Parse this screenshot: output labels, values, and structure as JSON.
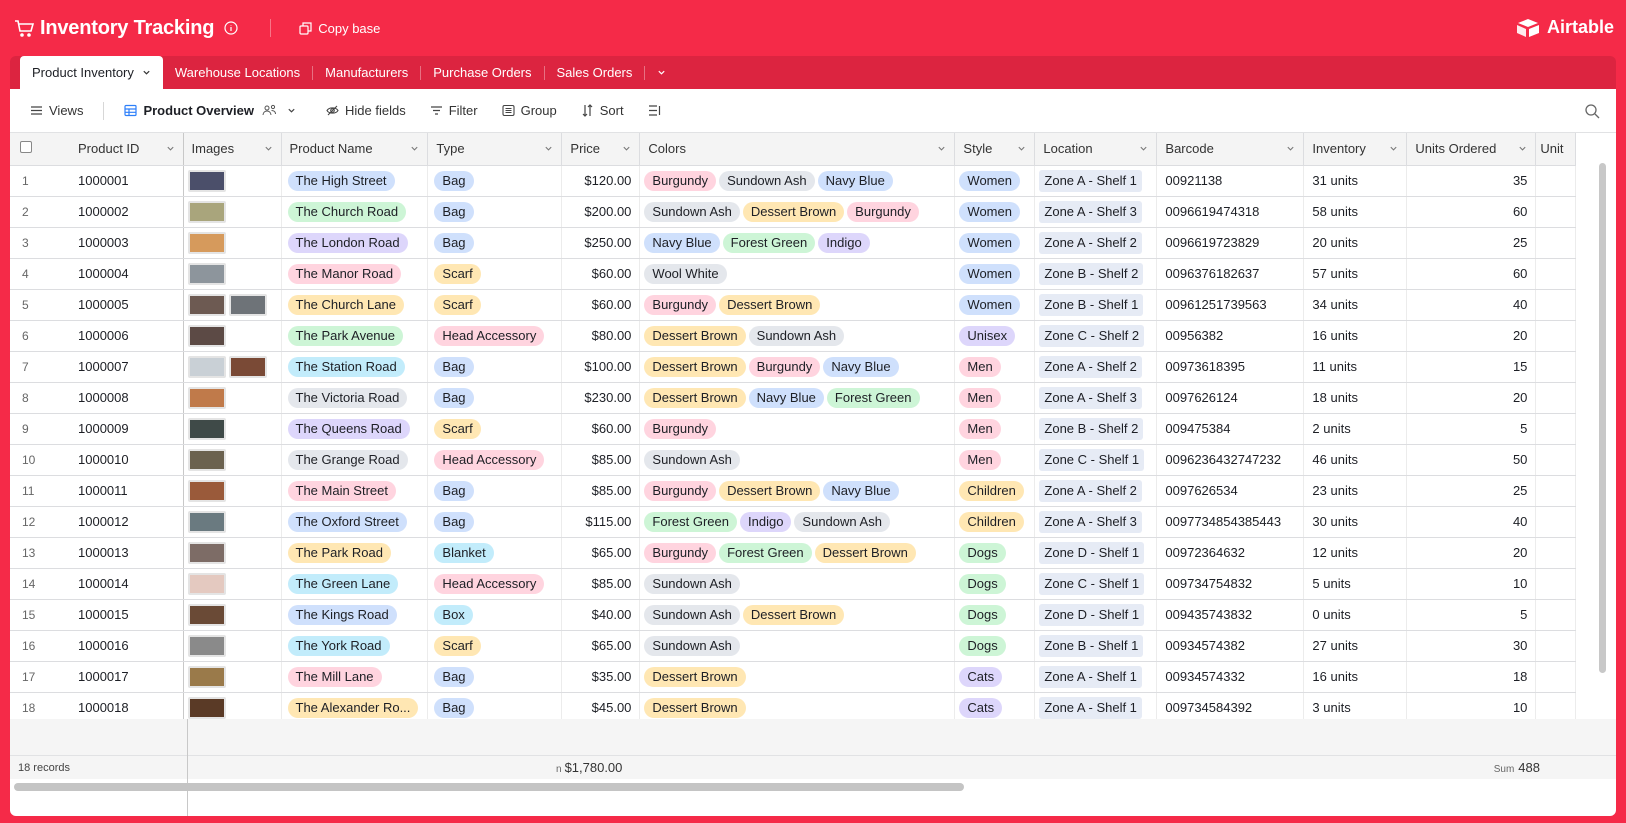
{
  "app": {
    "title": "Inventory Tracking",
    "copy_label": "Copy base",
    "brand": "Airtable",
    "accent": "#f52a48"
  },
  "tabs": [
    {
      "label": "Product Inventory",
      "active": true
    },
    {
      "label": "Warehouse Locations"
    },
    {
      "label": "Manufacturers"
    },
    {
      "label": "Purchase Orders"
    },
    {
      "label": "Sales Orders"
    }
  ],
  "viewbar": {
    "views_label": "Views",
    "view_name": "Product Overview",
    "hide_fields": "Hide fields",
    "filter": "Filter",
    "group": "Group",
    "sort": "Sort"
  },
  "columns": [
    "Product ID",
    "Images",
    "Product Name",
    "Type",
    "Price",
    "Colors",
    "Style",
    "Location",
    "Barcode",
    "Inventory",
    "Units Ordered",
    "Unit"
  ],
  "colors": {
    "blue": "#cfe0fc",
    "green": "#cdf5d6",
    "purple": "#ddd6fb",
    "pink": "#ffd4df",
    "yellow": "#ffe7b3",
    "cyan": "#c2ecfb",
    "gray": "#e4e7ec"
  },
  "rows": [
    {
      "n": "1",
      "id": "1000001",
      "imgs": [
        "#4b4f6a"
      ],
      "name": "The High Street",
      "nc": "blue",
      "type": "Bag",
      "tc": "blue",
      "price": "$120.00",
      "colors": [
        [
          "Burgundy",
          "pink"
        ],
        [
          "Sundown Ash",
          "gray"
        ],
        [
          "Navy Blue",
          "blue"
        ]
      ],
      "style": "Women",
      "sc": "blue",
      "loc": "Zone A - Shelf 1",
      "barcode": "00921138",
      "inv": "31 units",
      "ordered": "35"
    },
    {
      "n": "2",
      "id": "1000002",
      "imgs": [
        "#a9a57c"
      ],
      "name": "The Church Road",
      "nc": "green",
      "type": "Bag",
      "tc": "blue",
      "price": "$200.00",
      "colors": [
        [
          "Sundown Ash",
          "gray"
        ],
        [
          "Dessert Brown",
          "yellow"
        ],
        [
          "Burgundy",
          "pink"
        ]
      ],
      "style": "Women",
      "sc": "blue",
      "loc": "Zone A - Shelf 3",
      "barcode": "0096619474318",
      "inv": "58 units",
      "ordered": "60"
    },
    {
      "n": "3",
      "id": "1000003",
      "imgs": [
        "#d69a5c"
      ],
      "name": "The London Road",
      "nc": "purple",
      "type": "Bag",
      "tc": "blue",
      "price": "$250.00",
      "colors": [
        [
          "Navy Blue",
          "blue"
        ],
        [
          "Forest Green",
          "green"
        ],
        [
          "Indigo",
          "purple"
        ]
      ],
      "style": "Women",
      "sc": "blue",
      "loc": "Zone A - Shelf 2",
      "barcode": "0096619723829",
      "inv": "20 units",
      "ordered": "25"
    },
    {
      "n": "4",
      "id": "1000004",
      "imgs": [
        "#8d959c"
      ],
      "name": "The Manor Road",
      "nc": "pink",
      "type": "Scarf",
      "tc": "yellow",
      "price": "$60.00",
      "colors": [
        [
          "Wool White",
          "gray"
        ]
      ],
      "style": "Women",
      "sc": "blue",
      "loc": "Zone B - Shelf 2",
      "barcode": "0096376182637",
      "inv": "57 units",
      "ordered": "60"
    },
    {
      "n": "5",
      "id": "1000005",
      "imgs": [
        "#6d5a52",
        "#6e7378"
      ],
      "name": "The Church Lane",
      "nc": "yellow",
      "type": "Scarf",
      "tc": "yellow",
      "price": "$60.00",
      "colors": [
        [
          "Burgundy",
          "pink"
        ],
        [
          "Dessert Brown",
          "yellow"
        ]
      ],
      "style": "Women",
      "sc": "blue",
      "loc": "Zone B - Shelf 1",
      "barcode": "00961251739563",
      "inv": "34 units",
      "ordered": "40"
    },
    {
      "n": "6",
      "id": "1000006",
      "imgs": [
        "#5c4a45"
      ],
      "name": "The Park Avenue",
      "nc": "green",
      "type": "Head Accessory",
      "tc": "pink",
      "price": "$80.00",
      "colors": [
        [
          "Dessert Brown",
          "yellow"
        ],
        [
          "Sundown Ash",
          "gray"
        ]
      ],
      "style": "Unisex",
      "sc": "purple",
      "loc": "Zone C - Shelf 2",
      "barcode": "00956382",
      "inv": "16 units",
      "ordered": "20"
    },
    {
      "n": "7",
      "id": "1000007",
      "imgs": [
        "#c9d0d6",
        "#7a4a36"
      ],
      "name": "The Station Road",
      "nc": "cyan",
      "type": "Bag",
      "tc": "blue",
      "price": "$100.00",
      "colors": [
        [
          "Dessert Brown",
          "yellow"
        ],
        [
          "Burgundy",
          "pink"
        ],
        [
          "Navy Blue",
          "blue"
        ]
      ],
      "style": "Men",
      "sc": "pink",
      "loc": "Zone A - Shelf 2",
      "barcode": "00973618395",
      "inv": "11 units",
      "ordered": "15"
    },
    {
      "n": "8",
      "id": "1000008",
      "imgs": [
        "#c07a4a"
      ],
      "name": "The Victoria Road",
      "nc": "gray",
      "type": "Bag",
      "tc": "blue",
      "price": "$230.00",
      "colors": [
        [
          "Dessert Brown",
          "yellow"
        ],
        [
          "Navy Blue",
          "blue"
        ],
        [
          "Forest Green",
          "green"
        ]
      ],
      "style": "Men",
      "sc": "pink",
      "loc": "Zone A - Shelf 3",
      "barcode": "0097626124",
      "inv": "18 units",
      "ordered": "20"
    },
    {
      "n": "9",
      "id": "1000009",
      "imgs": [
        "#3f4a48"
      ],
      "name": "The Queens Road",
      "nc": "purple",
      "type": "Scarf",
      "tc": "yellow",
      "price": "$60.00",
      "colors": [
        [
          "Burgundy",
          "pink"
        ]
      ],
      "style": "Men",
      "sc": "pink",
      "loc": "Zone B - Shelf 2",
      "barcode": "009475384",
      "inv": "2 units",
      "ordered": "5"
    },
    {
      "n": "10",
      "id": "1000010",
      "imgs": [
        "#6b624f"
      ],
      "name": "The Grange Road",
      "nc": "gray",
      "type": "Head Accessory",
      "tc": "pink",
      "price": "$85.00",
      "colors": [
        [
          "Sundown Ash",
          "gray"
        ]
      ],
      "style": "Men",
      "sc": "pink",
      "loc": "Zone C - Shelf 1",
      "barcode": "0096236432747232",
      "inv": "46 units",
      "ordered": "50"
    },
    {
      "n": "11",
      "id": "1000011",
      "imgs": [
        "#9a5a3a"
      ],
      "name": "The Main Street",
      "nc": "pink",
      "type": "Bag",
      "tc": "blue",
      "price": "$85.00",
      "colors": [
        [
          "Burgundy",
          "pink"
        ],
        [
          "Dessert Brown",
          "yellow"
        ],
        [
          "Navy Blue",
          "blue"
        ]
      ],
      "style": "Children",
      "sc": "yellow",
      "loc": "Zone A - Shelf 2",
      "barcode": "0097626534",
      "inv": "23 units",
      "ordered": "25"
    },
    {
      "n": "12",
      "id": "1000012",
      "imgs": [
        "#6a7a80"
      ],
      "name": "The Oxford Street",
      "nc": "blue",
      "type": "Bag",
      "tc": "blue",
      "price": "$115.00",
      "colors": [
        [
          "Forest Green",
          "green"
        ],
        [
          "Indigo",
          "purple"
        ],
        [
          "Sundown Ash",
          "gray"
        ]
      ],
      "style": "Children",
      "sc": "yellow",
      "loc": "Zone A - Shelf 3",
      "barcode": "0097734854385443",
      "inv": "30 units",
      "ordered": "40"
    },
    {
      "n": "13",
      "id": "1000013",
      "imgs": [
        "#7d6c66"
      ],
      "name": "The Park Road",
      "nc": "yellow",
      "type": "Blanket",
      "tc": "cyan",
      "price": "$65.00",
      "colors": [
        [
          "Burgundy",
          "pink"
        ],
        [
          "Forest Green",
          "green"
        ],
        [
          "Dessert Brown",
          "yellow"
        ]
      ],
      "style": "Dogs",
      "sc": "green",
      "loc": "Zone D - Shelf 1",
      "barcode": "00972364632",
      "inv": "12 units",
      "ordered": "20"
    },
    {
      "n": "14",
      "id": "1000014",
      "imgs": [
        "#e4c9c0"
      ],
      "name": "The Green Lane",
      "nc": "cyan",
      "type": "Head Accessory",
      "tc": "pink",
      "price": "$85.00",
      "colors": [
        [
          "Sundown Ash",
          "gray"
        ]
      ],
      "style": "Dogs",
      "sc": "green",
      "loc": "Zone C - Shelf 1",
      "barcode": "009734754832",
      "inv": "5 units",
      "ordered": "10"
    },
    {
      "n": "15",
      "id": "1000015",
      "imgs": [
        "#6a4a36"
      ],
      "name": "The Kings Road",
      "nc": "blue",
      "type": "Box",
      "tc": "cyan",
      "price": "$40.00",
      "colors": [
        [
          "Sundown Ash",
          "gray"
        ],
        [
          "Dessert Brown",
          "yellow"
        ]
      ],
      "style": "Dogs",
      "sc": "green",
      "loc": "Zone D - Shelf 1",
      "barcode": "009435743832",
      "inv": "0 units",
      "ordered": "5"
    },
    {
      "n": "16",
      "id": "1000016",
      "imgs": [
        "#8a8a8a"
      ],
      "name": "The York Road",
      "nc": "cyan",
      "type": "Scarf",
      "tc": "yellow",
      "price": "$65.00",
      "colors": [
        [
          "Sundown Ash",
          "gray"
        ]
      ],
      "style": "Dogs",
      "sc": "green",
      "loc": "Zone B - Shelf 1",
      "barcode": "00934574382",
      "inv": "27 units",
      "ordered": "30"
    },
    {
      "n": "17",
      "id": "1000017",
      "imgs": [
        "#9a7a4a"
      ],
      "name": "The Mill Lane",
      "nc": "pink",
      "type": "Bag",
      "tc": "blue",
      "price": "$35.00",
      "colors": [
        [
          "Dessert Brown",
          "yellow"
        ]
      ],
      "style": "Cats",
      "sc": "purple",
      "loc": "Zone A - Shelf 1",
      "barcode": "00934574332",
      "inv": "16 units",
      "ordered": "18"
    },
    {
      "n": "18",
      "id": "1000018",
      "imgs": [
        "#5a3a26"
      ],
      "name": "The Alexander Ro...",
      "nc": "yellow",
      "type": "Bag",
      "tc": "blue",
      "price": "$45.00",
      "colors": [
        [
          "Dessert Brown",
          "yellow"
        ]
      ],
      "style": "Cats",
      "sc": "purple",
      "loc": "Zone A - Shelf 1",
      "barcode": "009734584392",
      "inv": "3 units",
      "ordered": "10"
    }
  ],
  "footer": {
    "records": "18 records",
    "price_sum_label": "n",
    "price_sum": "$1,780.00",
    "units_sum_label": "Sum",
    "units_sum": "488"
  }
}
